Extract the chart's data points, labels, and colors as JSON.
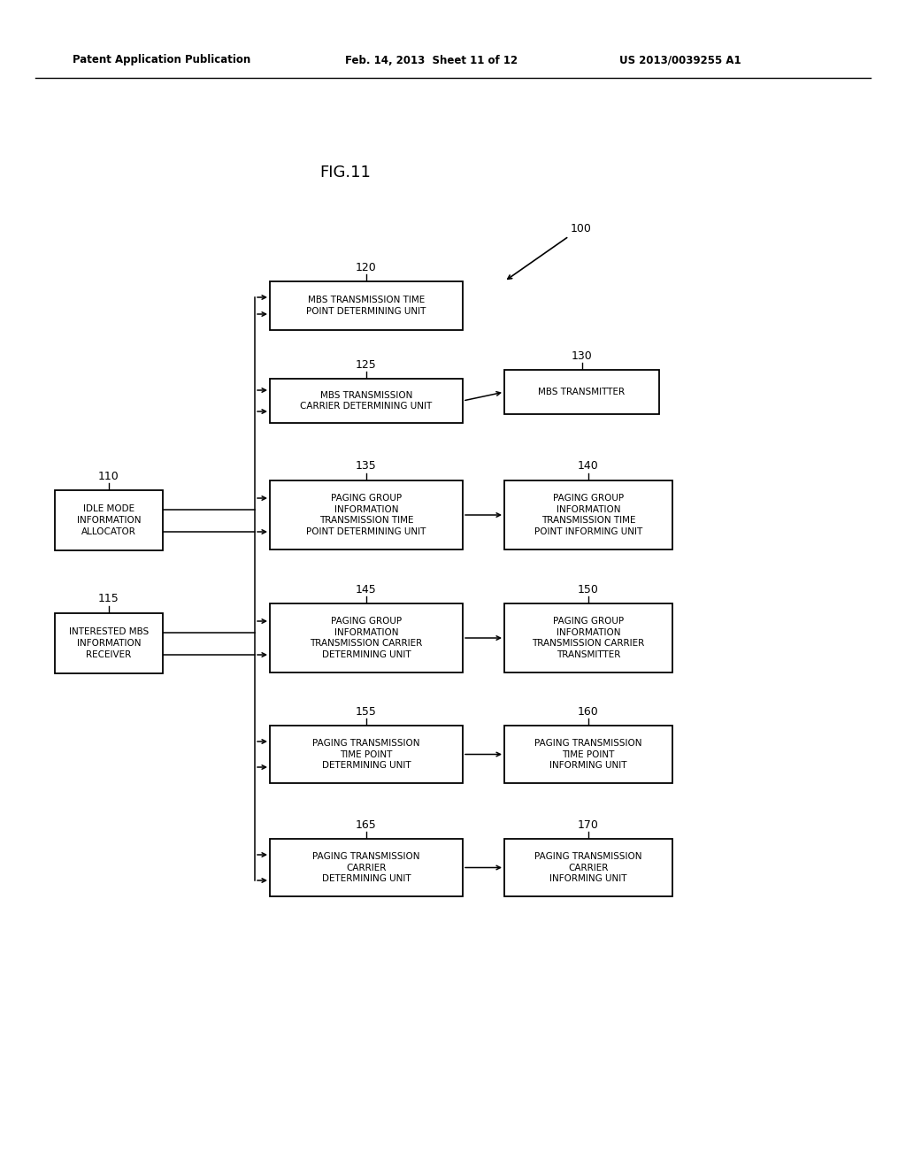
{
  "fig_label": "FIG.11",
  "header_left": "Patent Application Publication",
  "header_center": "Feb. 14, 2013  Sheet 11 of 12",
  "header_right": "US 2013/0039255 A1",
  "label_100": "100",
  "label_120": "120",
  "label_125": "125",
  "label_130": "130",
  "label_110": "110",
  "label_115": "115",
  "label_135": "135",
  "label_140": "140",
  "label_145": "145",
  "label_150": "150",
  "label_155": "155",
  "label_160": "160",
  "label_165": "165",
  "label_170": "170",
  "box_120_text": "MBS TRANSMISSION TIME\nPOINT DETERMINING UNIT",
  "box_125_text": "MBS TRANSMISSION\nCARRIER DETERMINING UNIT",
  "box_130_text": "MBS TRANSMITTER",
  "box_110_text": "IDLE MODE\nINFORMATION\nALLOCATOR",
  "box_115_text": "INTERESTED MBS\nINFORMATION\nRECEIVER",
  "box_135_text": "PAGING GROUP\nINFORMATION\nTRANSMISSION TIME\nPOINT DETERMINING UNIT",
  "box_140_text": "PAGING GROUP\nINFORMATION\nTRANSMISSION TIME\nPOINT INFORMING UNIT",
  "box_145_text": "PAGING GROUP\nINFORMATION\nTRANSMISSION CARRIER\nDETERMINING UNIT",
  "box_150_text": "PAGING GROUP\nINFORMATION\nTRANSMISSION CARRIER\nTRANSMITTER",
  "box_155_text": "PAGING TRANSMISSION\nTIME POINT\nDETERMINING UNIT",
  "box_160_text": "PAGING TRANSMISSION\nTIME POINT\nINFORMING UNIT",
  "box_165_text": "PAGING TRANSMISSION\nCARRIER\nDETERMINING UNIT",
  "box_170_text": "PAGING TRANSMISSION\nCARRIER\nINFORMING UNIT",
  "bg_color": "#ffffff",
  "line_color": "#000000",
  "text_color": "#000000"
}
